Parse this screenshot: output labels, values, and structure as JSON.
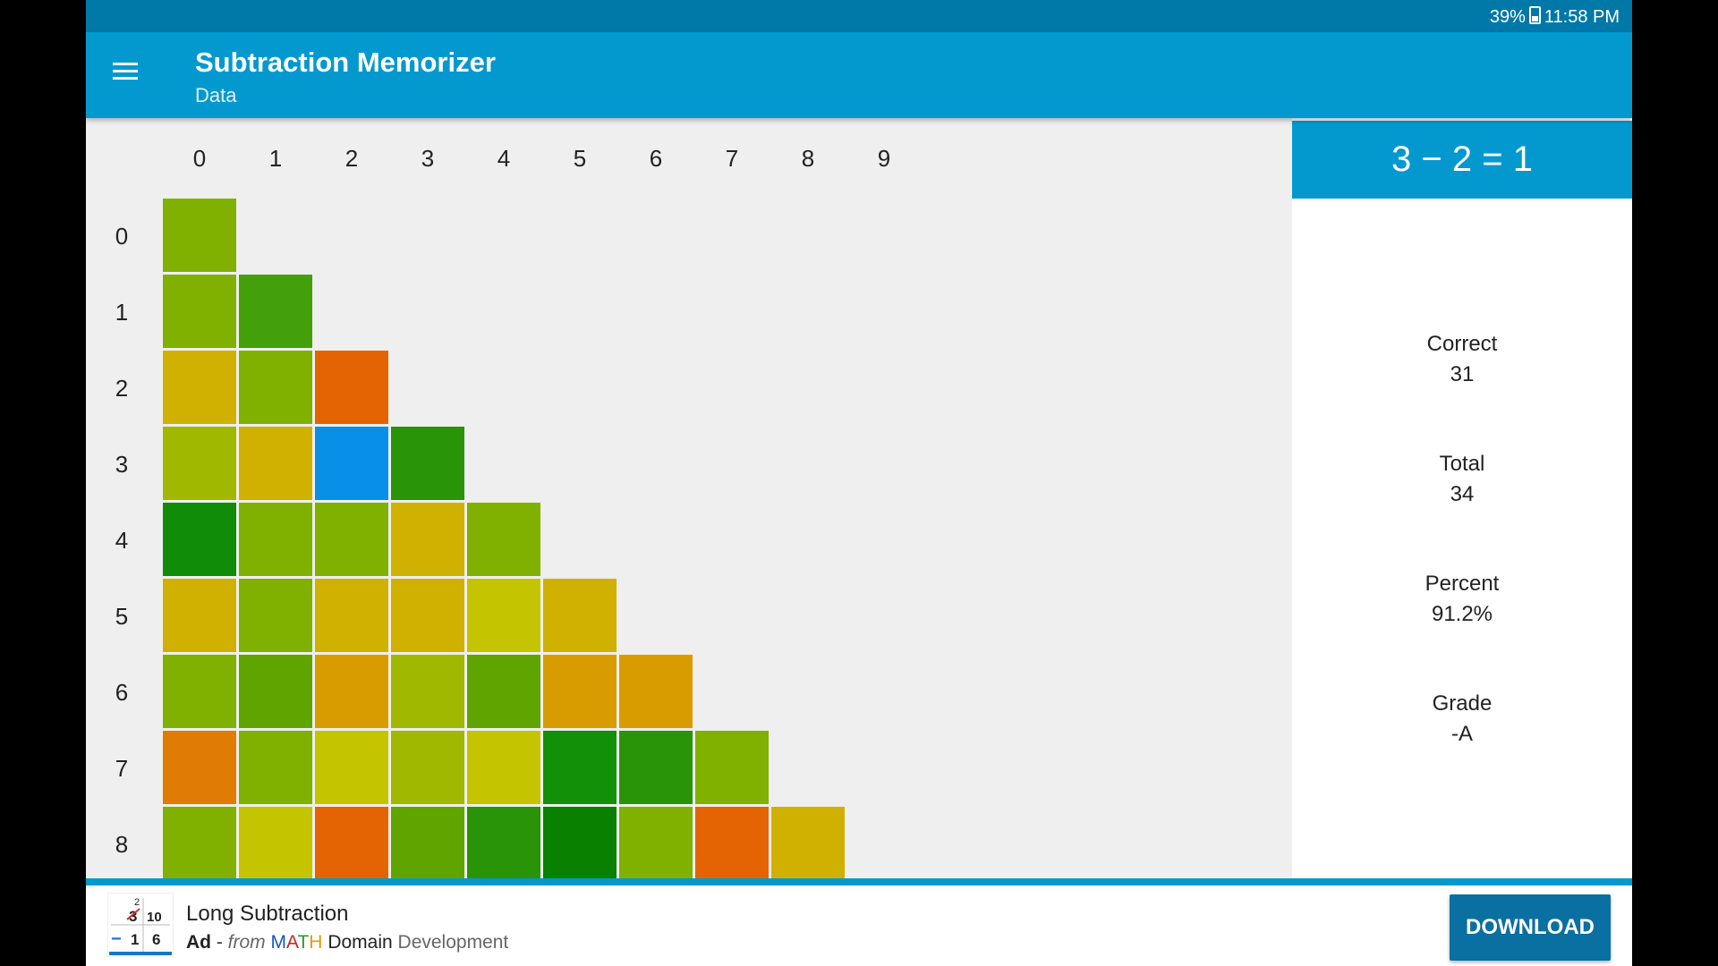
{
  "status_bar": {
    "battery": "39%",
    "time": "11:58 PM"
  },
  "app_bar": {
    "title": "Subtraction Memorizer",
    "subtitle": "Data",
    "menu_icon": "menu-icon"
  },
  "grid": {
    "column_labels": [
      "0",
      "1",
      "2",
      "3",
      "4",
      "5",
      "6",
      "7",
      "8",
      "9"
    ],
    "row_labels": [
      "0",
      "1",
      "2",
      "3",
      "4",
      "5",
      "6",
      "7",
      "8"
    ],
    "rows": [
      [
        "#80b000"
      ],
      [
        "#80b000",
        "#44a00a"
      ],
      [
        "#d0b000",
        "#80b000",
        "#e46404"
      ],
      [
        "#a0b800",
        "#d0b000",
        "#0890e8",
        "#2a9408"
      ],
      [
        "#108c08",
        "#80b000",
        "#80b000",
        "#d0b000",
        "#80b000"
      ],
      [
        "#d0b000",
        "#80b000",
        "#d0b000",
        "#d0b000",
        "#c4c400",
        "#d0b000"
      ],
      [
        "#80b000",
        "#60a400",
        "#d89c00",
        "#a0b800",
        "#60a400",
        "#d89c00",
        "#d89c00"
      ],
      [
        "#e07c04",
        "#80b000",
        "#c4c400",
        "#a0b800",
        "#c4c400",
        "#129008",
        "#2a9408",
        "#80b000"
      ],
      [
        "#80b000",
        "#c4c400",
        "#e46404",
        "#60a400",
        "#2a9408",
        "#088000",
        "#80b000",
        "#e46404",
        "#d0b000"
      ]
    ]
  },
  "side_panel": {
    "equation": "3 − 2 = 1",
    "stats": [
      {
        "label": "Correct",
        "value": "31"
      },
      {
        "label": "Total",
        "value": "34"
      },
      {
        "label": "Percent",
        "value": "91.2%"
      },
      {
        "label": "Grade",
        "value": "-A"
      }
    ]
  },
  "ad": {
    "icon_digits": {
      "top_small": "2",
      "top_left": "3",
      "top_right": "10",
      "bottom_op": "−",
      "bottom_left": "1",
      "bottom_right": "6"
    },
    "title": "Long Subtraction",
    "label": "Ad",
    "separator": " - ",
    "from": "from",
    "brand_letters": [
      "M",
      "A",
      "T",
      "H"
    ],
    "domain": "Domain",
    "developer": "Development",
    "download_label": "DOWNLOAD"
  },
  "colors": {
    "statusbar": "#0078a8",
    "appbar": "#0399cf",
    "button": "#0a6fa1"
  }
}
